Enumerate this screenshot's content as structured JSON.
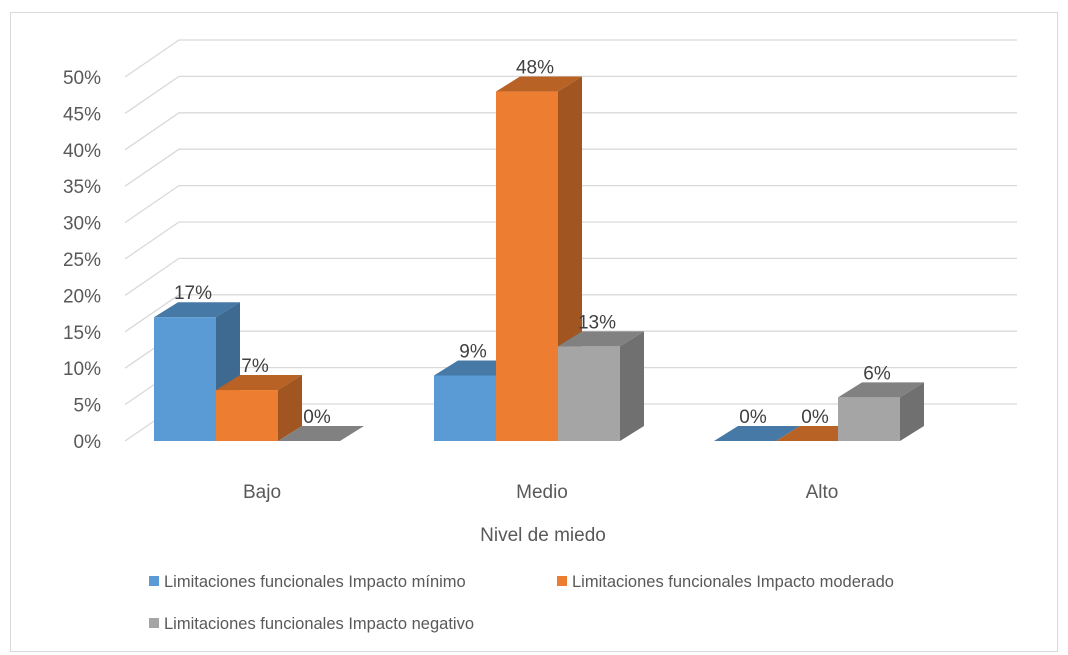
{
  "chart_data": {
    "type": "bar",
    "title": "",
    "xlabel": "Nivel de miedo",
    "ylabel": "",
    "ylim": [
      0,
      50
    ],
    "yticks": [
      "0%",
      "5%",
      "10%",
      "15%",
      "20%",
      "25%",
      "30%",
      "35%",
      "40%",
      "45%",
      "50%"
    ],
    "categories": [
      "Bajo",
      "Medio",
      "Alto"
    ],
    "series": [
      {
        "name": "Limitaciones funcionales Impacto mínimo",
        "color": "#5b9bd5",
        "values": [
          17,
          9,
          0
        ],
        "labels": [
          "17%",
          "9%",
          "0%"
        ]
      },
      {
        "name": "Limitaciones funcionales Impacto moderado",
        "color": "#ed7d31",
        "values": [
          7,
          48,
          0
        ],
        "labels": [
          "7%",
          "48%",
          "0%"
        ]
      },
      {
        "name": "Limitaciones funcionales Impacto negativo",
        "color": "#a5a5a5",
        "values": [
          0,
          13,
          6
        ],
        "labels": [
          "0%",
          "13%",
          "6%"
        ]
      }
    ],
    "grid": true,
    "legend_position": "bottom",
    "style": "3d-column"
  }
}
